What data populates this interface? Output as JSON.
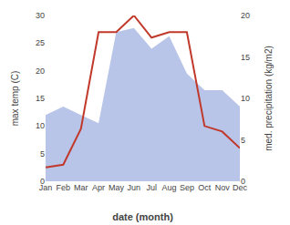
{
  "chart_data": {
    "type": "line",
    "xlabel": "date (month)",
    "ylabel": "max temp (C)",
    "y2label": "med. precipitation (kg/m2)",
    "categories": [
      "Jan",
      "Feb",
      "Mar",
      "Apr",
      "May",
      "Jun",
      "Jul",
      "Aug",
      "Sep",
      "Oct",
      "Nov",
      "Dec"
    ],
    "series": [
      {
        "type": "area",
        "axis": "y2",
        "color": "#b8c4e8",
        "values": [
          8.0,
          9.0,
          8.0,
          7.0,
          18.0,
          18.5,
          16.0,
          17.5,
          13.0,
          11.0,
          11.0,
          9.0
        ]
      },
      {
        "type": "line",
        "axis": "y",
        "color": "#c0392b",
        "values": [
          2.5,
          3.0,
          9.5,
          27.0,
          27.0,
          30.0,
          26.0,
          27.0,
          27.0,
          10.0,
          9.0,
          6.0
        ]
      }
    ],
    "ylim": [
      0,
      30
    ],
    "yticks": [
      0,
      5,
      10,
      15,
      20,
      25,
      30
    ],
    "y2lim": [
      0,
      20
    ],
    "y2ticks": [
      0,
      5,
      10,
      15,
      20
    ],
    "grid": false
  }
}
